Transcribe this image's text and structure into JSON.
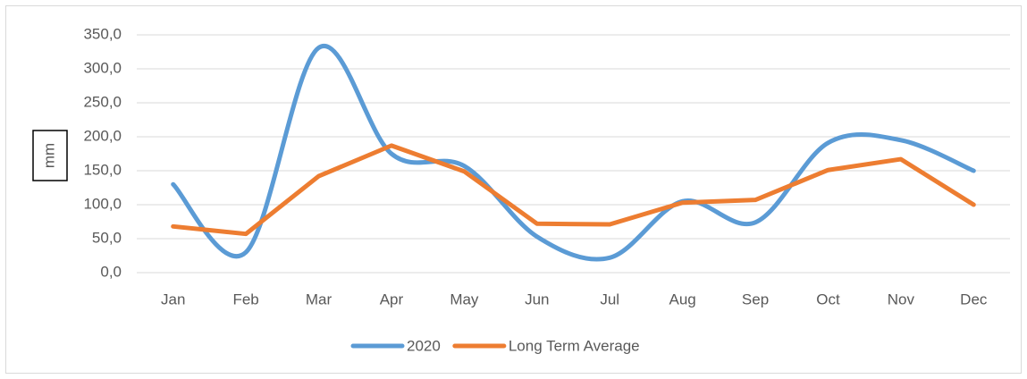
{
  "chart_data": {
    "type": "line",
    "y_label": "mm",
    "categories": [
      "Jan",
      "Feb",
      "Mar",
      "Apr",
      "May",
      "Jun",
      "Jul",
      "Aug",
      "Sep",
      "Oct",
      "Nov",
      "Dec"
    ],
    "series": [
      {
        "name": "2020",
        "color": "#5b9bd5",
        "smooth": true,
        "values": [
          130,
          30,
          331,
          175,
          157,
          53,
          22,
          105,
          74,
          191,
          195,
          150
        ]
      },
      {
        "name": "Long Term Average",
        "color": "#ed7d31",
        "smooth": false,
        "values": [
          68,
          57,
          142,
          187,
          149,
          72,
          71,
          103,
          107,
          151,
          167,
          100
        ]
      }
    ],
    "ylim": [
      0,
      350
    ],
    "yticks": [
      {
        "value": 0,
        "label": "0,0"
      },
      {
        "value": 50,
        "label": "50,0"
      },
      {
        "value": 100,
        "label": "100,0"
      },
      {
        "value": 150,
        "label": "150,0"
      },
      {
        "value": 200,
        "label": "200,0"
      },
      {
        "value": 250,
        "label": "250,0"
      },
      {
        "value": 300,
        "label": "300,0"
      },
      {
        "value": 350,
        "label": "350,0"
      }
    ],
    "grid": true,
    "legend": "bottom"
  }
}
